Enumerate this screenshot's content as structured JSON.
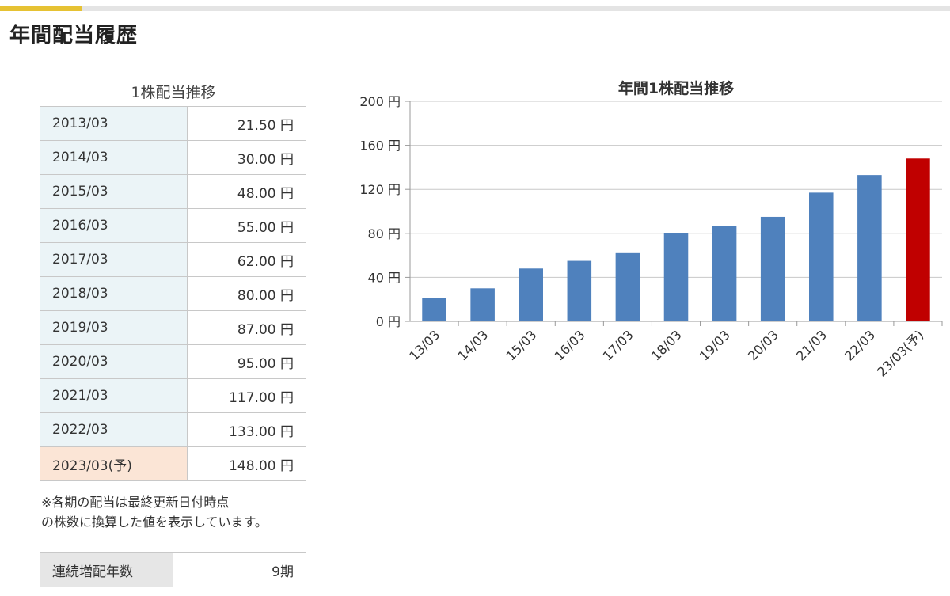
{
  "section_title": "年間配当履歴",
  "table": {
    "caption": "1株配当推移",
    "rows": [
      {
        "year": "2013/03",
        "amount": "21.50 円"
      },
      {
        "year": "2014/03",
        "amount": "30.00 円"
      },
      {
        "year": "2015/03",
        "amount": "48.00 円"
      },
      {
        "year": "2016/03",
        "amount": "55.00 円"
      },
      {
        "year": "2017/03",
        "amount": "62.00 円"
      },
      {
        "year": "2018/03",
        "amount": "80.00 円"
      },
      {
        "year": "2019/03",
        "amount": "87.00 円"
      },
      {
        "year": "2020/03",
        "amount": "95.00 円"
      },
      {
        "year": "2021/03",
        "amount": "117.00 円"
      },
      {
        "year": "2022/03",
        "amount": "133.00 円"
      },
      {
        "year": "2023/03(予)",
        "amount": "148.00 円",
        "forecast": true
      }
    ]
  },
  "note": {
    "line1": "※各期の配当は最終更新日付時点",
    "line2": "の株数に換算した値を表示しています。"
  },
  "streak": {
    "label": "連続増配年数",
    "value": "9期"
  },
  "colors": {
    "bar": "#4f81bd",
    "forecast_bar": "#c00000",
    "year_cell_bg": "#ebf4f7",
    "forecast_cell_bg": "#fbe5d6",
    "accent": "#e6c233"
  },
  "chart_data": {
    "type": "bar",
    "title": "年間1株配当推移",
    "categories": [
      "13/03",
      "14/03",
      "15/03",
      "16/03",
      "17/03",
      "18/03",
      "19/03",
      "20/03",
      "21/03",
      "22/03",
      "23/03(予)"
    ],
    "values": [
      21.5,
      30,
      48,
      55,
      62,
      80,
      87,
      95,
      117,
      133,
      148
    ],
    "forecast_index": 10,
    "ylim": [
      0,
      200
    ],
    "y_ticks": [
      0,
      40,
      80,
      120,
      160,
      200
    ],
    "y_tick_suffix": " 円",
    "grid": true,
    "xlabel": "",
    "ylabel": ""
  }
}
